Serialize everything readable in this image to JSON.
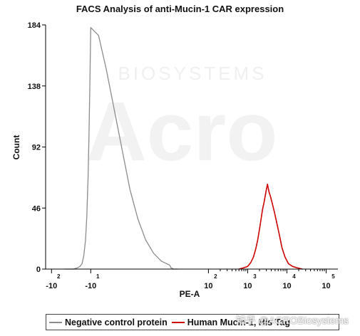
{
  "chart_data": {
    "type": "area",
    "title": "FACS Analysis of anti-Mucin-1 CAR expression",
    "xlabel": "PE-A",
    "ylabel": "Count",
    "x_scale": "biexponential",
    "xlim": [
      -100,
      200000
    ],
    "ylim": [
      0,
      184
    ],
    "y_ticks": [
      0,
      46,
      92,
      138,
      184
    ],
    "x_ticks": [
      {
        "base": "-10",
        "exp": "2",
        "value": -100
      },
      {
        "base": "-10",
        "exp": "1",
        "value": -10
      },
      {
        "base": "10",
        "exp": "2",
        "value": 100
      },
      {
        "base": "10",
        "exp": "3",
        "value": 1000
      },
      {
        "base": "10",
        "exp": "4",
        "value": 10000
      },
      {
        "base": "10",
        "exp": "5",
        "value": 100000
      }
    ],
    "series": [
      {
        "name": "Negative control protein",
        "color": "#8c8c8c",
        "x": [
          -70,
          -50,
          -40,
          -35,
          -30,
          -26,
          -22,
          -19,
          -16,
          -14,
          -12,
          -10,
          -8,
          -6,
          -4,
          -2,
          0,
          2,
          4,
          6,
          8,
          11,
          14,
          20,
          30
        ],
        "y": [
          0,
          0,
          1,
          2,
          4,
          10,
          22,
          40,
          70,
          100,
          140,
          182,
          176,
          150,
          120,
          90,
          60,
          38,
          22,
          12,
          6,
          3,
          1,
          0,
          0
        ]
      },
      {
        "name": "Human Mucin-1, His Tag",
        "color": "#cc0000",
        "x": [
          600,
          800,
          1000,
          1200,
          1400,
          1600,
          1800,
          2000,
          2200,
          2400,
          2600,
          2800,
          3000,
          3200,
          3500,
          3800,
          4200,
          4800,
          5500,
          6500,
          7500,
          9000,
          11000,
          14000,
          18000,
          25000
        ],
        "y": [
          0,
          1,
          2,
          5,
          9,
          15,
          22,
          30,
          38,
          45,
          50,
          55,
          60,
          64,
          58,
          55,
          50,
          43,
          35,
          25,
          16,
          9,
          4,
          2,
          1,
          0
        ]
      }
    ],
    "legend": {
      "placement": "bottom"
    }
  },
  "watermark": "知乎 @ACROBiosystems"
}
